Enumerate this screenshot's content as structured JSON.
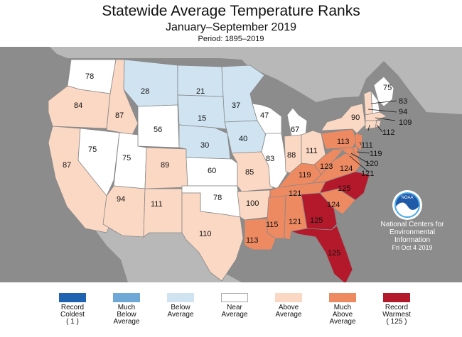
{
  "title": "Statewide Average Temperature Ranks",
  "subtitle": "January–September 2019",
  "period": "Period: 1895–2019",
  "credit": {
    "logo_text": "NOAA",
    "org_line1": "National Centers for",
    "org_line2": "Environmental",
    "org_line3": "Information",
    "date": "Fri Oct  4 2019"
  },
  "colors": {
    "ocean": "#8c8c8c",
    "land_outside": "#b8b8b8",
    "lakes": "#8c8c8c",
    "record_coldest": "#1f64b0",
    "much_below": "#6ea8d6",
    "below": "#cfe3f1",
    "near": "#ffffff",
    "above": "#fbd8c4",
    "much_above": "#ee8a62",
    "record_warmest": "#b4192b"
  },
  "legend": [
    {
      "line1": "Record",
      "line2": "Coldest",
      "line3": "( 1 )",
      "color": "#1f64b0"
    },
    {
      "line1": "Much",
      "line2": "Below",
      "line3": "Average",
      "color": "#6ea8d6"
    },
    {
      "line1": "Below",
      "line2": "Average",
      "line3": "",
      "color": "#cfe3f1"
    },
    {
      "line1": "Near",
      "line2": "Average",
      "line3": "",
      "color": "#ffffff"
    },
    {
      "line1": "Above",
      "line2": "Average",
      "line3": "",
      "color": "#fbd8c4"
    },
    {
      "line1": "Much",
      "line2": "Above",
      "line3": "Average",
      "color": "#ee8a62"
    },
    {
      "line1": "Record",
      "line2": "Warmest",
      "line3": "( 125 )",
      "color": "#b4192b"
    }
  ],
  "ranks": {
    "WA": "78",
    "OR": "84",
    "CA": "87",
    "ID": "87",
    "NV": "75",
    "MT": "28",
    "WY": "56",
    "UT": "75",
    "AZ": "94",
    "CO": "89",
    "NM": "111",
    "ND": "21",
    "SD": "15",
    "NE": "30",
    "KS": "60",
    "OK": "78",
    "TX": "110",
    "MN": "37",
    "IA": "40",
    "MO": "85",
    "AR": "100",
    "LA": "113",
    "WI": "47",
    "IL": "83",
    "MI": "67",
    "IN": "88",
    "OH": "111",
    "KY": "119",
    "TN": "121",
    "MS": "115",
    "AL": "121",
    "GA": "125",
    "FL": "125",
    "SC": "124",
    "NC": "125",
    "VA": "124",
    "WV": "123",
    "PA": "113",
    "NY": "90",
    "ME": "75",
    "NH": "83",
    "VT": "94",
    "MA": "109",
    "CT": "112",
    "RI": "112",
    "NJ": "111",
    "DE": "119",
    "MD": "120",
    "DC": "121"
  }
}
